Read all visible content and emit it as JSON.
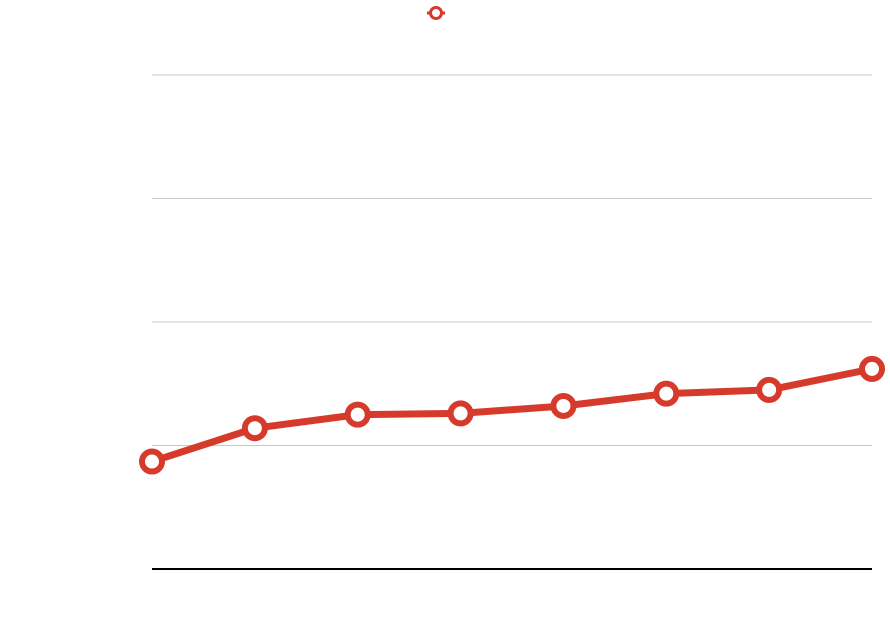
{
  "chart_data": {
    "type": "line",
    "title": "",
    "xlabel": "",
    "ylabel": "",
    "x": [
      1,
      2,
      3,
      4,
      5,
      6,
      7,
      8
    ],
    "series": [
      {
        "values": [
          0.87,
          1.14,
          1.25,
          1.26,
          1.32,
          1.42,
          1.45,
          1.62
        ],
        "color": "#d63a2a",
        "marker": "hollow-circle"
      }
    ],
    "ylim": [
      0,
      4
    ],
    "yticks": [
      1,
      2,
      3,
      4
    ],
    "grid": true,
    "legend": "top-center",
    "gridline_color": "#c8c8c8",
    "axis_color": "#000000"
  }
}
